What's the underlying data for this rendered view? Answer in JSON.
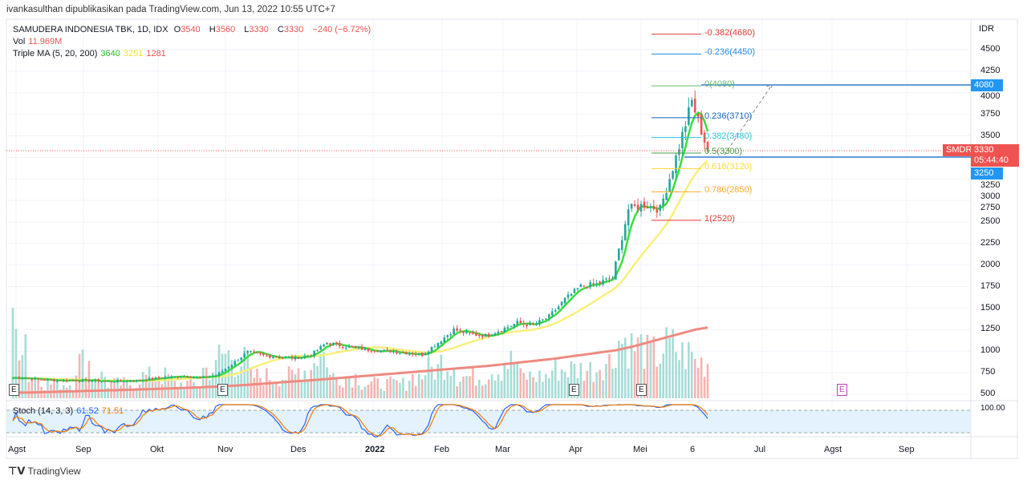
{
  "header": {
    "publisher": "ivankasulthan dipublikasikan pada TradingView.com, Jun 13, 2022 10:55 UTC+7"
  },
  "legend": {
    "symbol": "SAMUDERA INDONESIA TBK, 1D, IDX",
    "o_label": "O",
    "o": "3540",
    "h_label": "H",
    "h": "3560",
    "l_label": "L",
    "l": "3330",
    "c_label": "C",
    "c": "3330",
    "change": "−240 (−6.72%)",
    "vol_label": "Vol",
    "vol": "11.969M",
    "ma_label": "Triple MA (5, 20, 200)",
    "ma5": "3640",
    "ma20": "3251",
    "ma200": "1281",
    "stoch_label": "Stoch (14, 3, 3)",
    "stoch_k": "61.52",
    "stoch_d": "71.51"
  },
  "price_axis": {
    "currency": "IDR",
    "ticks": [
      4500,
      4250,
      4000,
      3750,
      3500,
      3250,
      3000,
      2750,
      2500,
      2250,
      2000,
      1750,
      1500,
      1250,
      1000,
      750,
      500
    ],
    "stoch_tick": "100.00",
    "badge_4080": "4080",
    "badge_3250": "3250",
    "symbol_badge": "SMDR",
    "last_price": "3330",
    "countdown": "05:44:40"
  },
  "fib": [
    {
      "label": "-0.382(4680)",
      "price": 4680,
      "color": "#e53935"
    },
    {
      "label": "-0.236(4450)",
      "price": 4450,
      "color": "#1e88e5"
    },
    {
      "label": "0(4080)",
      "price": 4080,
      "color": "#66bb6a"
    },
    {
      "label": "0.236(3710)",
      "price": 3710,
      "color": "#1565c0"
    },
    {
      "label": "0.382(3480)",
      "price": 3480,
      "color": "#26c6da"
    },
    {
      "label": "0.5(3300)",
      "price": 3300,
      "color": "#43a047"
    },
    {
      "label": "0.618(3120)",
      "price": 3120,
      "color": "#fdd835"
    },
    {
      "label": "0.786(2850)",
      "price": 2850,
      "color": "#ffa726"
    },
    {
      "label": "1(2520)",
      "price": 2520,
      "color": "#e53935"
    }
  ],
  "time_axis": [
    "Agst",
    "Sep",
    "Okt",
    "Nov",
    "Des",
    "2022",
    "Feb",
    "Mar",
    "Apr",
    "Mei",
    "6",
    "Jul",
    "Agst",
    "Sep"
  ],
  "earnings_marker": "E",
  "footer": {
    "brand": "TradingView"
  },
  "chart_data": {
    "type": "candlestick",
    "title": "SAMUDERA INDONESIA TBK, 1D, IDX",
    "ylim": [
      500,
      4500
    ],
    "weekly_close": [
      690,
      670,
      660,
      665,
      660,
      650,
      655,
      660,
      680,
      700,
      710,
      690,
      720,
      850,
      990,
      950,
      930,
      920,
      960,
      1100,
      1060,
      1030,
      1010,
      1000,
      980,
      960,
      1100,
      1250,
      1200,
      1180,
      1250,
      1330,
      1300,
      1400,
      1600,
      1750,
      1780,
      1850,
      2650,
      2700,
      2650,
      3250,
      3900,
      3330
    ],
    "weekly_volume": [
      9,
      3,
      2,
      2,
      5,
      3,
      2,
      2,
      3,
      3,
      2,
      2,
      4,
      6,
      5,
      3,
      3,
      3,
      4,
      6,
      3,
      3,
      2,
      2,
      2,
      3,
      4,
      5,
      3,
      3,
      4,
      5,
      3,
      3,
      4,
      4,
      4,
      5,
      8,
      7,
      6,
      7,
      6,
      5
    ],
    "ma200_weekly": [
      520,
      525,
      530,
      535,
      540,
      545,
      550,
      556,
      562,
      568,
      575,
      582,
      590,
      600,
      612,
      625,
      640,
      652,
      665,
      680,
      695,
      710,
      725,
      740,
      755,
      770,
      785,
      800,
      815,
      830,
      850,
      870,
      890,
      910,
      935,
      960,
      985,
      1010,
      1050,
      1100,
      1150,
      1200,
      1250,
      1281
    ],
    "colors": {
      "up": "#26a69a",
      "down": "#ef5350",
      "ma5": "#3ddc3d",
      "ma20": "#f9ef7a",
      "ma200": "#ef8a80"
    }
  }
}
